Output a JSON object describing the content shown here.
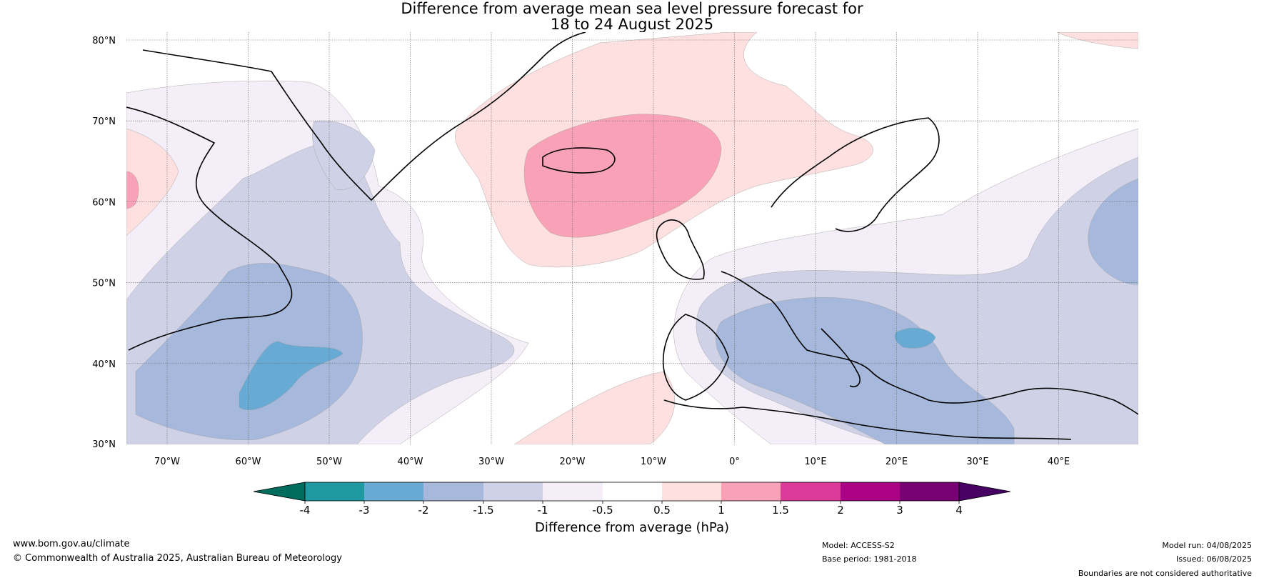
{
  "title": {
    "line1": "Difference from average mean sea level pressure forecast for",
    "line2": "18 to 24 August 2025"
  },
  "map": {
    "lat_labels": [
      "80°N",
      "70°N",
      "60°N",
      "50°N",
      "40°N",
      "30°N"
    ],
    "lon_labels": [
      "70°W",
      "60°W",
      "50°W",
      "40°W",
      "30°W",
      "20°W",
      "10°W",
      "0°",
      "10°E",
      "20°E",
      "30°E",
      "40°E"
    ],
    "colors": {
      "neg4": "#006c5e",
      "neg3": "#1f9aa2",
      "neg2": "#67abd4",
      "neg15": "#a6b9dc",
      "neg1": "#cfd2e6",
      "neg05": "#f3eef7",
      "zero": "#ffffff",
      "pos05": "#fde0df",
      "pos1": "#f9a1b6",
      "pos15": "#dc3b9b",
      "pos2": "#ab0286",
      "pos3": "#790176",
      "pos4": "#470063"
    },
    "regions": [
      "Anomaly high centred over Iceland, above +1 hPa",
      "Anomaly low near Newfoundland, below -2 hPa",
      "Anomaly low over the Balkans and Mediterranean, below -2 hPa"
    ]
  },
  "legend": {
    "ticks": [
      "-4",
      "-3",
      "-2",
      "-1.5",
      "-1",
      "-0.5",
      "0.5",
      "1",
      "1.5",
      "2",
      "3",
      "4"
    ],
    "label": "Difference from average (hPa)"
  },
  "footer": {
    "website": "www.bom.gov.au/climate",
    "copyright": "© Commonwealth of Australia 2025, Australian Bureau of Meteorology",
    "model": "Model: ACCESS-S2",
    "base_period": "Base period: 1981-2018",
    "model_run": "Model run: 04/08/2025",
    "issued": "Issued: 06/08/2025",
    "disclaimer": "Boundaries are not considered authoritative"
  }
}
